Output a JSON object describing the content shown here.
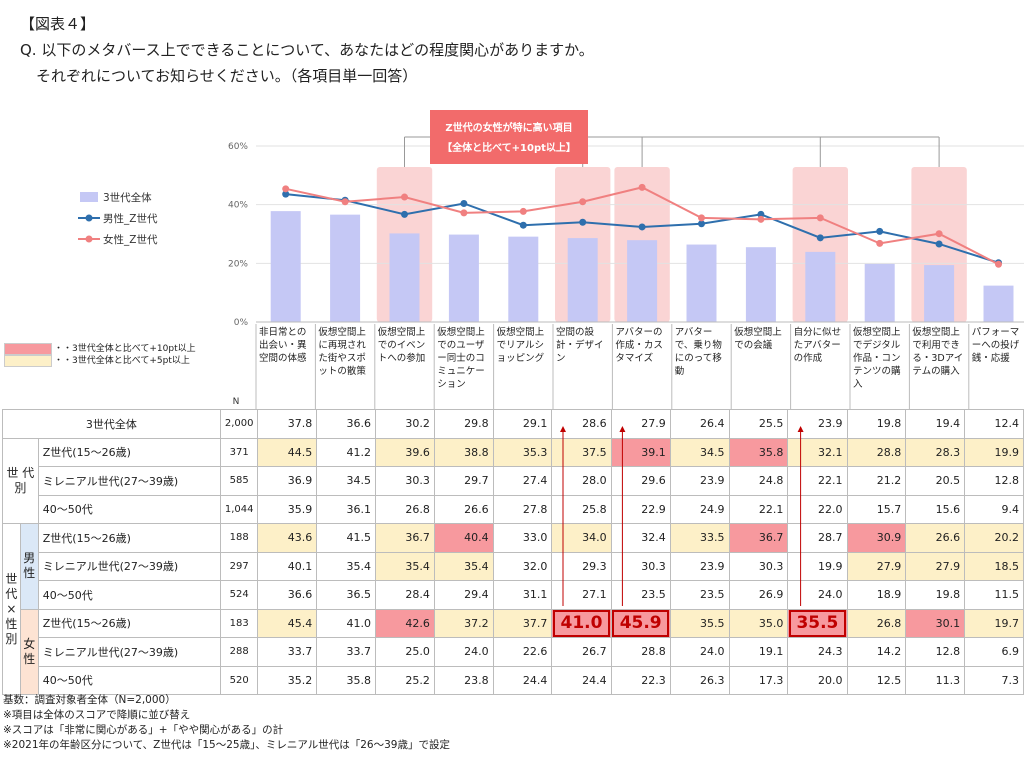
{
  "header": {
    "figure_label": "【図表４】",
    "question_line1": "Q. 以下のメタバース上でできることについて、あなたはどの程度関心がありますか。",
    "question_line2": "それぞれについてお知らせください。（各項目単一回答）"
  },
  "annotation": {
    "title_line1": "Z世代の女性が特に高い項目",
    "title_line2": "【全体と比べて+10pt以上】"
  },
  "key": {
    "red": "・・3世代全体と比べて+10pt以上",
    "yellow": "・・3世代全体と比べて+5pt以上"
  },
  "colors": {
    "bar": "#c5c8f5",
    "male_line": "#2e6fad",
    "female_line": "#f08080",
    "highlight_col": "#fad4d4",
    "red_cell": "#f7999e",
    "yellow_cell": "#fdf0c8",
    "annotation_box": "#f26b6b"
  },
  "chart_data": {
    "type": "bar",
    "ylim": [
      0,
      60
    ],
    "yticks": [
      "0%",
      "20%",
      "40%",
      "60%"
    ],
    "legend": "left",
    "categories": [
      "非日常との出会い・異空間の体感",
      "仮想空間上に再現された街やスポットの散策",
      "仮想空間上でのイベントへの参加",
      "仮想空間上でのユーザー同士のコミュニケーション",
      "仮想空間上でリアルショッピング",
      "空間の設計・デザイン",
      "アバターの作成・カスタマイズ",
      "アバターで、乗り物にのって移動",
      "仮想空間上での会議",
      "自分に似せたアバターの作成",
      "仮想空間上でデジタル作品・コンテンツの購入",
      "仮想空間上で利用できる・3Dアイテムの購入",
      "パフォーマーへの投げ銭・応援"
    ],
    "highlighted_indices": [
      2,
      5,
      6,
      9,
      11
    ],
    "series": [
      {
        "name": "3世代全体",
        "kind": "bar",
        "values": [
          37.8,
          36.6,
          30.2,
          29.8,
          29.1,
          28.6,
          27.9,
          26.4,
          25.5,
          23.9,
          19.8,
          19.4,
          12.4
        ]
      },
      {
        "name": "男性_Z世代",
        "kind": "line",
        "values": [
          43.6,
          41.5,
          36.7,
          40.4,
          33.0,
          34.0,
          32.4,
          33.5,
          36.7,
          28.7,
          30.9,
          26.6,
          20.2
        ]
      },
      {
        "name": "女性_Z世代",
        "kind": "line",
        "values": [
          45.4,
          41.0,
          42.6,
          37.2,
          37.7,
          41.0,
          45.9,
          35.5,
          35.0,
          35.5,
          26.8,
          30.1,
          19.7
        ]
      }
    ]
  },
  "table": {
    "n_header": "N",
    "group_generation": "世代別",
    "group_gen_sex": "世代×性別",
    "male_label": "男性",
    "female_label": "女性",
    "rows": [
      {
        "label": "3世代全体",
        "n": "2,000",
        "values": [
          "37.8",
          "36.6",
          "30.2",
          "29.8",
          "29.1",
          "28.6",
          "27.9",
          "26.4",
          "25.5",
          "23.9",
          "19.8",
          "19.4",
          "12.4"
        ],
        "hl": [
          "",
          "",
          "",
          "",
          "",
          "",
          "",
          "",
          "",
          "",
          "",
          "",
          ""
        ]
      },
      {
        "label": "Z世代(15～26歳)",
        "n": "371",
        "values": [
          "44.5",
          "41.2",
          "39.6",
          "38.8",
          "35.3",
          "37.5",
          "39.1",
          "34.5",
          "35.8",
          "32.1",
          "28.8",
          "28.3",
          "19.9"
        ],
        "hl": [
          "y",
          "",
          "y",
          "y",
          "y",
          "y",
          "r",
          "y",
          "r",
          "y",
          "y",
          "y",
          "y"
        ]
      },
      {
        "label": "ミレニアル世代(27～39歳)",
        "n": "585",
        "values": [
          "36.9",
          "34.5",
          "30.3",
          "29.7",
          "27.4",
          "28.0",
          "29.6",
          "23.9",
          "24.8",
          "22.1",
          "21.2",
          "20.5",
          "12.8"
        ],
        "hl": [
          "",
          "",
          "",
          "",
          "",
          "",
          "",
          "",
          "",
          "",
          "",
          "",
          ""
        ]
      },
      {
        "label": "40～50代",
        "n": "1,044",
        "values": [
          "35.9",
          "36.1",
          "26.8",
          "26.6",
          "27.8",
          "25.8",
          "22.9",
          "24.9",
          "22.1",
          "22.0",
          "15.7",
          "15.6",
          "9.4"
        ],
        "hl": [
          "",
          "",
          "",
          "",
          "",
          "",
          "",
          "",
          "",
          "",
          "",
          "",
          ""
        ]
      },
      {
        "label": "Z世代(15～26歳)",
        "n": "188",
        "values": [
          "43.6",
          "41.5",
          "36.7",
          "40.4",
          "33.0",
          "34.0",
          "32.4",
          "33.5",
          "36.7",
          "28.7",
          "30.9",
          "26.6",
          "20.2"
        ],
        "hl": [
          "y",
          "",
          "y",
          "r",
          "",
          "y",
          "",
          "y",
          "r",
          "",
          "r",
          "y",
          "y"
        ]
      },
      {
        "label": "ミレニアル世代(27～39歳)",
        "n": "297",
        "values": [
          "40.1",
          "35.4",
          "35.4",
          "35.4",
          "32.0",
          "29.3",
          "30.3",
          "23.9",
          "30.3",
          "19.9",
          "27.9",
          "27.9",
          "18.5"
        ],
        "hl": [
          "",
          "",
          "y",
          "y",
          "",
          "",
          "",
          "",
          "",
          "",
          "y",
          "y",
          "y"
        ]
      },
      {
        "label": "40～50代",
        "n": "524",
        "values": [
          "36.6",
          "36.5",
          "28.4",
          "29.4",
          "31.1",
          "27.1",
          "23.5",
          "23.5",
          "26.9",
          "24.0",
          "18.9",
          "19.8",
          "11.5"
        ],
        "hl": [
          "",
          "",
          "",
          "",
          "",
          "",
          "",
          "",
          "",
          "",
          "",
          "",
          ""
        ]
      },
      {
        "label": "Z世代(15～26歳)",
        "n": "183",
        "values": [
          "45.4",
          "41.0",
          "42.6",
          "37.2",
          "37.7",
          "41.0",
          "45.9",
          "35.5",
          "35.0",
          "35.5",
          "26.8",
          "30.1",
          "19.7"
        ],
        "hl": [
          "y",
          "",
          "r",
          "y",
          "y",
          "b",
          "b",
          "y",
          "y",
          "b",
          "y",
          "r",
          "y"
        ]
      },
      {
        "label": "ミレニアル世代(27～39歳)",
        "n": "288",
        "values": [
          "33.7",
          "33.7",
          "25.0",
          "24.0",
          "22.6",
          "26.7",
          "28.8",
          "24.0",
          "19.1",
          "24.3",
          "14.2",
          "12.8",
          "6.9"
        ],
        "hl": [
          "",
          "",
          "",
          "",
          "",
          "",
          "",
          "",
          "",
          "",
          "",
          "",
          ""
        ]
      },
      {
        "label": "40～50代",
        "n": "520",
        "values": [
          "35.2",
          "35.8",
          "25.2",
          "23.8",
          "24.4",
          "24.4",
          "22.3",
          "26.3",
          "17.3",
          "20.0",
          "12.5",
          "11.3",
          "7.3"
        ],
        "hl": [
          "",
          "",
          "",
          "",
          "",
          "",
          "",
          "",
          "",
          "",
          "",
          "",
          ""
        ]
      }
    ]
  },
  "footnotes": [
    "基数：調査対象者全体（N=2,000）",
    "※項目は全体のスコアで降順に並び替え",
    "※スコアは「非常に関心がある」+「やや関心がある」の計",
    "※2021年の年齢区分について、Z世代は「15～25歳」、ミレニアル世代は「26～39歳」で設定"
  ]
}
